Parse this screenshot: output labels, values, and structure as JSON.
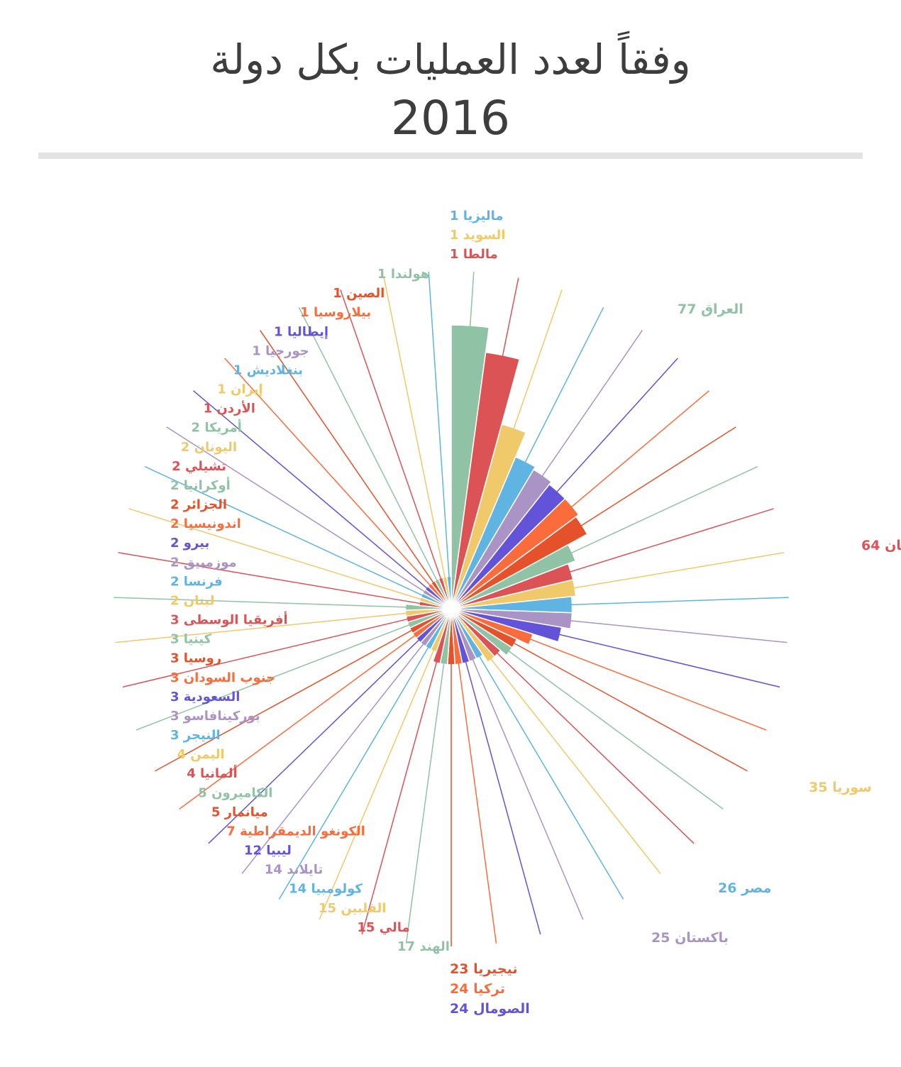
{
  "title": "وفقاً لعدد العمليات بكل دولة",
  "subtitle": "2016",
  "chart_data": {
    "type": "pie",
    "variant": "polar-area (radius proportional to value, equal angular slices)",
    "series": [
      {
        "label": "العراق",
        "value": 77,
        "color": "#90c3a5"
      },
      {
        "label": "أفغانستان",
        "value": 64,
        "color": "#dc5356"
      },
      {
        "label": "سوريا",
        "value": 35,
        "color": "#efc96a"
      },
      {
        "label": "مصر",
        "value": 26,
        "color": "#5fb4e1"
      },
      {
        "label": "باكستان",
        "value": 25,
        "color": "#aa93c5"
      },
      {
        "label": "الصومال",
        "value": 24,
        "color": "#6353d9"
      },
      {
        "label": "تركيا",
        "value": 24,
        "color": "#fb6c3c"
      },
      {
        "label": "نيجيريا",
        "value": 23,
        "color": "#e5512a"
      },
      {
        "label": "الهند",
        "value": 17,
        "color": "#90c3a5"
      },
      {
        "label": "مالي",
        "value": 15,
        "color": "#dc5356"
      },
      {
        "label": "الفلبين",
        "value": 15,
        "color": "#efc96a"
      },
      {
        "label": "كولومبيا",
        "value": 14,
        "color": "#5fb4e1"
      },
      {
        "label": "تايلاند",
        "value": 14,
        "color": "#aa93c5"
      },
      {
        "label": "ليبيا",
        "value": 12,
        "color": "#6353d9"
      },
      {
        "label": "الكونغو الديمقراطية",
        "value": 7,
        "color": "#fb6c3c"
      },
      {
        "label": "ميانمار",
        "value": 5,
        "color": "#e5512a"
      },
      {
        "label": "الكاميرون",
        "value": 5,
        "color": "#90c3a5"
      },
      {
        "label": "ألمانيا",
        "value": 4,
        "color": "#dc5356"
      },
      {
        "label": "اليمن",
        "value": 4,
        "color": "#efc96a"
      },
      {
        "label": "النيجر",
        "value": 3,
        "color": "#5fb4e1"
      },
      {
        "label": "بوركينافاسو",
        "value": 3,
        "color": "#aa93c5"
      },
      {
        "label": "السعودية",
        "value": 3,
        "color": "#6353d9"
      },
      {
        "label": "جنوب السودان",
        "value": 3,
        "color": "#fb6c3c"
      },
      {
        "label": "روسيا",
        "value": 3,
        "color": "#e5512a"
      },
      {
        "label": "كينيا",
        "value": 3,
        "color": "#90c3a5"
      },
      {
        "label": "أفريقيا الوسطى",
        "value": 3,
        "color": "#dc5356"
      },
      {
        "label": "لبنان",
        "value": 2,
        "color": "#efc96a"
      },
      {
        "label": "فرنسا",
        "value": 2,
        "color": "#5fb4e1"
      },
      {
        "label": "موزمبيق",
        "value": 2,
        "color": "#aa93c5"
      },
      {
        "label": "بيرو",
        "value": 2,
        "color": "#6353d9"
      },
      {
        "label": "اندونيسيا",
        "value": 2,
        "color": "#fb6c3c"
      },
      {
        "label": "الجزائر",
        "value": 2,
        "color": "#e5512a"
      },
      {
        "label": "أوكرانيا",
        "value": 2,
        "color": "#90c3a5"
      },
      {
        "label": "تشيلي",
        "value": 2,
        "color": "#dc5356"
      },
      {
        "label": "اليونان",
        "value": 2,
        "color": "#efc96a"
      },
      {
        "label": "أمريكا",
        "value": 2,
        "color": "#90c3a5"
      },
      {
        "label": "الأردن",
        "value": 1,
        "color": "#dc5356"
      },
      {
        "label": "إيران",
        "value": 1,
        "color": "#efc96a"
      },
      {
        "label": "بنغلاديش",
        "value": 1,
        "color": "#5fb4e1"
      },
      {
        "label": "جورجيا",
        "value": 1,
        "color": "#aa93c5"
      },
      {
        "label": "إيطاليا",
        "value": 1,
        "color": "#6353d9"
      },
      {
        "label": "بيلاروسيا",
        "value": 1,
        "color": "#fb6c3c"
      },
      {
        "label": "الصين",
        "value": 1,
        "color": "#e5512a"
      },
      {
        "label": "هولندا",
        "value": 1,
        "color": "#90c3a5"
      },
      {
        "label": "مالطا",
        "value": 1,
        "color": "#dc5356"
      },
      {
        "label": "السويد",
        "value": 1,
        "color": "#efc96a"
      },
      {
        "label": "ماليزيا",
        "value": 1,
        "color": "#5fb4e1"
      }
    ]
  }
}
